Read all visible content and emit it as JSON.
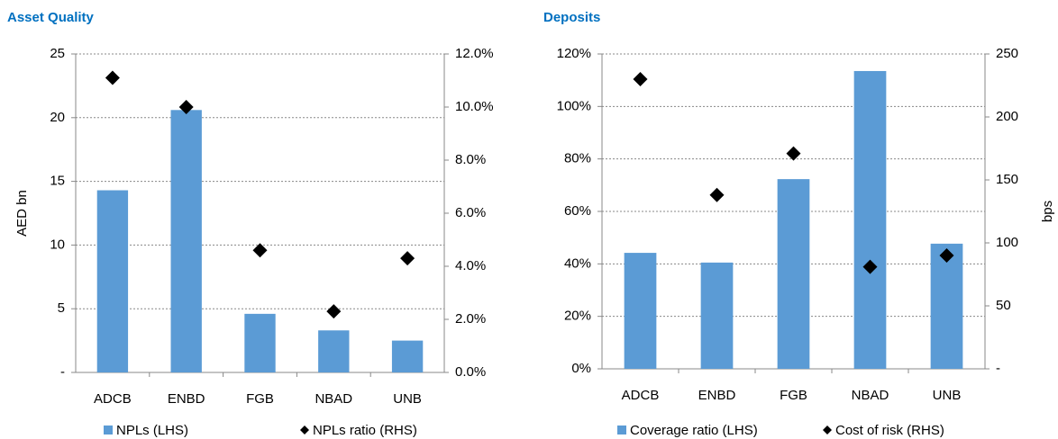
{
  "chart_data": [
    {
      "type": "bar",
      "title": "Asset Quality",
      "ylabel": "AED bn",
      "categories": [
        "ADCB",
        "ENBD",
        "FGB",
        "NBAD",
        "UNB"
      ],
      "series": [
        {
          "name": "NPLs (LHS)",
          "color": "#5b9bd5",
          "values": [
            14.3,
            20.6,
            4.6,
            3.3,
            2.5
          ]
        },
        {
          "name": "NPLs ratio (RHS)",
          "color": "#000000",
          "axis": "y2",
          "values": [
            11.1,
            10.0,
            4.6,
            2.3,
            4.3
          ]
        }
      ],
      "ylim": [
        0,
        25
      ],
      "yticks": [
        {
          "value": 0,
          "label": "-"
        },
        5,
        10,
        15,
        20,
        25
      ],
      "y2lim": [
        0,
        12
      ],
      "y2ticks": [
        {
          "value": 0,
          "label": "0.0%"
        },
        {
          "value": 2,
          "label": "2.0%"
        },
        {
          "value": 4,
          "label": "4.0%"
        },
        {
          "value": 6,
          "label": "6.0%"
        },
        {
          "value": 8,
          "label": "8.0%"
        },
        {
          "value": 10,
          "label": "10.0%"
        },
        {
          "value": 12,
          "label": "12.0%"
        }
      ],
      "grid": true
    },
    {
      "type": "bar",
      "title": "Deposits",
      "y2label": "bps",
      "categories": [
        "ADCB",
        "ENBD",
        "FGB",
        "NBAD",
        "UNB"
      ],
      "series": [
        {
          "name": "Coverage ratio (LHS)",
          "color": "#5b9bd5",
          "values": [
            44.2,
            40.5,
            72.3,
            113.5,
            47.7
          ]
        },
        {
          "name": "Cost of risk (RHS)",
          "color": "#000000",
          "axis": "y2",
          "values": [
            230,
            138,
            171,
            81,
            90
          ]
        }
      ],
      "ylim": [
        0,
        120
      ],
      "yticks": [
        {
          "value": 0,
          "label": "0%"
        },
        {
          "value": 20,
          "label": "20%"
        },
        {
          "value": 40,
          "label": "40%"
        },
        {
          "value": 60,
          "label": "60%"
        },
        {
          "value": 80,
          "label": "80%"
        },
        {
          "value": 100,
          "label": "100%"
        },
        {
          "value": 120,
          "label": "120%"
        }
      ],
      "y2lim": [
        0,
        250
      ],
      "y2ticks": [
        {
          "value": 0,
          "label": "-"
        },
        50,
        100,
        150,
        200,
        250
      ],
      "grid": true
    }
  ]
}
